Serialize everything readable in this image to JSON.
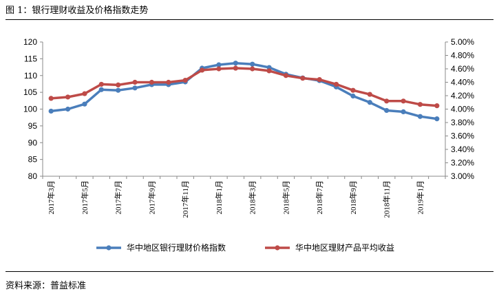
{
  "figure": {
    "title": "图 1：银行理财收益及价格指数走势",
    "source": "资料来源：普益标准"
  },
  "chart_data": {
    "type": "line",
    "categories": [
      "2017年3月",
      "2017年4月",
      "2017年5月",
      "2017年6月",
      "2017年7月",
      "2017年8月",
      "2017年9月",
      "2017年10月",
      "2017年11月",
      "2017年12月",
      "2018年1月",
      "2018年2月",
      "2018年3月",
      "2018年4月",
      "2018年5月",
      "2018年6月",
      "2018年7月",
      "2018年8月",
      "2018年9月",
      "2018年10月",
      "2018年11月",
      "2018年12月",
      "2019年1月",
      "2019年2月"
    ],
    "x_tick_labels": [
      "2017年3月",
      "2017年5月",
      "2017年7月",
      "2017年9月",
      "2017年11月",
      "2018年1月",
      "2018年3月",
      "2018年5月",
      "2018年7月",
      "2018年9月",
      "2018年11月",
      "2019年1月"
    ],
    "series": [
      {
        "name": "华中地区银行理财价格指数",
        "axis": "left",
        "color": "#4a7ebb",
        "values": [
          99.4,
          100.0,
          101.5,
          105.8,
          105.6,
          106.3,
          107.3,
          107.3,
          108.1,
          112.2,
          113.2,
          113.7,
          113.4,
          112.4,
          110.4,
          109.3,
          108.5,
          106.6,
          103.9,
          102.0,
          99.6,
          99.2,
          97.8,
          97.1
        ]
      },
      {
        "name": "华中地区理财产品平均收益",
        "axis": "right",
        "color": "#be4b48",
        "values": [
          4.16,
          4.18,
          4.23,
          4.37,
          4.36,
          4.4,
          4.4,
          4.4,
          4.43,
          4.58,
          4.6,
          4.61,
          4.6,
          4.57,
          4.5,
          4.46,
          4.44,
          4.37,
          4.28,
          4.22,
          4.12,
          4.12,
          4.07,
          4.05
        ]
      }
    ],
    "y_left": {
      "min": 80,
      "max": 120,
      "step": 5,
      "ticks": [
        "80",
        "85",
        "90",
        "95",
        "100",
        "105",
        "110",
        "115",
        "120"
      ]
    },
    "y_right": {
      "min": 3.0,
      "max": 5.0,
      "step": 0.2,
      "ticks": [
        "3.00%",
        "3.20%",
        "3.40%",
        "3.60%",
        "3.80%",
        "4.00%",
        "4.20%",
        "4.40%",
        "4.60%",
        "4.80%",
        "5.00%"
      ]
    },
    "grid": false,
    "legend_position": "bottom"
  }
}
